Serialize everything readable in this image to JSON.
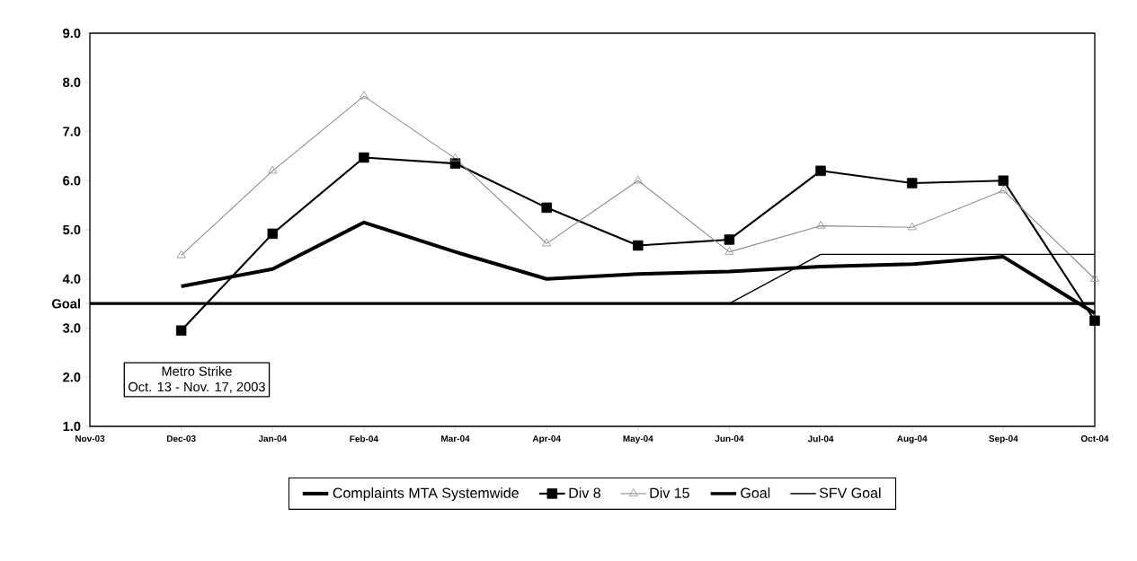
{
  "chart_data": {
    "type": "line",
    "categories": [
      "Nov-03",
      "Dec-03",
      "Jan-04",
      "Feb-04",
      "Mar-04",
      "Apr-04",
      "May-04",
      "Jun-04",
      "Jul-04",
      "Aug-04",
      "Sep-04",
      "Oct-04"
    ],
    "series": [
      {
        "name": "Complaints MTA Systemwide",
        "color": "#000000",
        "marker": "none",
        "values": [
          null,
          3.85,
          4.2,
          5.15,
          4.55,
          4.0,
          4.1,
          4.15,
          4.25,
          4.3,
          4.45,
          3.3
        ]
      },
      {
        "name": "Div 8",
        "color": "#000000",
        "marker": "square",
        "values": [
          null,
          2.95,
          4.92,
          6.47,
          6.35,
          5.45,
          4.68,
          4.8,
          6.2,
          5.95,
          6.0,
          3.15
        ]
      },
      {
        "name": "Div 15",
        "color": "#8c8c8c",
        "marker": "triangle",
        "values": [
          null,
          4.48,
          6.2,
          7.72,
          6.45,
          4.72,
          6.0,
          4.55,
          5.08,
          5.05,
          5.8,
          4.0
        ]
      },
      {
        "name": "Goal",
        "color": "#000000",
        "marker": "none",
        "values": [
          3.5,
          3.5,
          3.5,
          3.5,
          3.5,
          3.5,
          3.5,
          3.5,
          3.5,
          3.5,
          3.5,
          3.5
        ]
      },
      {
        "name": "SFV Goal",
        "color": "#000000",
        "marker": "none",
        "values": [
          null,
          null,
          null,
          null,
          null,
          null,
          null,
          3.5,
          4.5,
          4.5,
          4.5,
          4.5
        ]
      }
    ],
    "ylim": [
      1,
      9
    ],
    "yticks": [
      {
        "value": 1,
        "label": "1.0"
      },
      {
        "value": 2,
        "label": "2.0"
      },
      {
        "value": 3,
        "label": "3.0"
      },
      {
        "value": 3.5,
        "label": "Goal"
      },
      {
        "value": 4,
        "label": "4.0"
      },
      {
        "value": 5,
        "label": "5.0"
      },
      {
        "value": 6,
        "label": "6.0"
      },
      {
        "value": 7,
        "label": "7.0"
      },
      {
        "value": 8,
        "label": "8.0"
      },
      {
        "value": 9,
        "label": "9.0"
      }
    ],
    "annotations": [
      "Metro Strike",
      "Oct. 13 - Nov. 17, 2003"
    ],
    "legend": "bottom",
    "grid": false
  }
}
